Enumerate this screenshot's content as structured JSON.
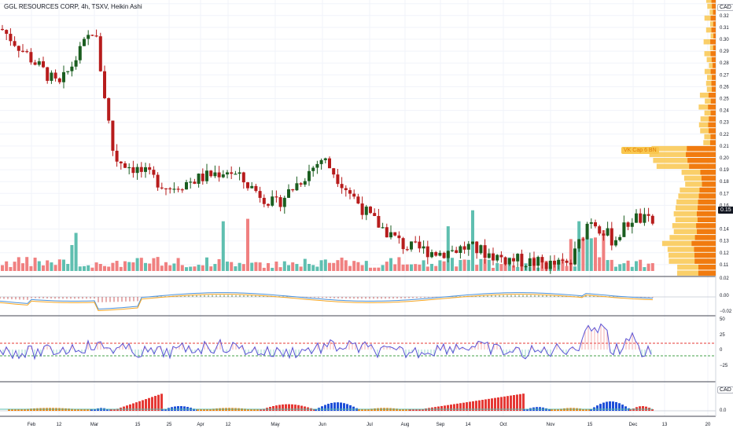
{
  "header": {
    "title": "GGL RESOURCES CORP, 4h, TSXV, Heikin Ashi"
  },
  "price_axis": {
    "currency": "CAD",
    "current_price": "0.15",
    "ticks": [
      "0.33",
      "0.32",
      "0.31",
      "0.30",
      "0.29",
      "0.28",
      "0.27",
      "0.26",
      "0.25",
      "0.24",
      "0.23",
      "0.22",
      "0.21",
      "0.20",
      "0.19",
      "0.18",
      "0.17",
      "0.16",
      "0.14",
      "0.13",
      "0.12",
      "0.11",
      "0.10"
    ]
  },
  "volume_profile_label": "VK Cap 6 BN",
  "macd_axis": {
    "ticks": [
      "0.02",
      "0.00",
      "−0.02"
    ]
  },
  "osc_axis": {
    "ticks": [
      "50",
      "25",
      "0",
      "−25"
    ]
  },
  "bottom_axis": {
    "currency": "CAD",
    "ticks": [
      "0.0"
    ]
  },
  "time_axis": {
    "labels": [
      "Feb",
      "12",
      "Mar",
      "15",
      "25",
      "Apr",
      "12",
      "May",
      "Jun",
      "Jul",
      "Aug",
      "Sep",
      "14",
      "Oct",
      "Nov",
      "15",
      "Dec",
      "13",
      "20"
    ]
  },
  "colors": {
    "up": "#1b5e20",
    "down": "#b71c1c",
    "vol_up": "#5fbfb0",
    "vol_down": "#f08080",
    "macd": "#4a90d9",
    "signal": "#f5a623",
    "osc": "#5c55d6",
    "band_upper": "#e53935",
    "band_lower": "#43a047",
    "vp_yellow": "#f9c74f",
    "vp_orange": "#ef6c00",
    "bar_red": "#e53935",
    "bar_blue": "#1e4fd8",
    "bar_orange": "#f57c00"
  },
  "chart_data": [
    {
      "type": "candlestick",
      "title": "GGL RESOURCES CORP, 4h, TSXV, Heikin Ashi",
      "ylim": [
        0.1,
        0.34
      ],
      "x_labels": [
        "Feb",
        "12",
        "Mar",
        "15",
        "25",
        "Apr",
        "12",
        "May",
        "Jun",
        "Jul",
        "Aug",
        "Sep",
        "14",
        "Oct",
        "Nov",
        "15",
        "Dec",
        "13",
        "20"
      ],
      "close_path": [
        {
          "x": "Feb",
          "y": 0.3
        },
        {
          "x": "12",
          "y": 0.26
        },
        {
          "x": "Mar",
          "y": 0.31
        },
        {
          "x": "15",
          "y": 0.19
        },
        {
          "x": "25",
          "y": 0.185
        },
        {
          "x": "Apr",
          "y": 0.175
        },
        {
          "x": "12",
          "y": 0.19
        },
        {
          "x": "May",
          "y": 0.16
        },
        {
          "x": "Jun",
          "y": 0.195
        },
        {
          "x": "Jul",
          "y": 0.15
        },
        {
          "x": "Aug",
          "y": 0.125
        },
        {
          "x": "Sep",
          "y": 0.12
        },
        {
          "x": "14",
          "y": 0.125
        },
        {
          "x": "Oct",
          "y": 0.115
        },
        {
          "x": "Nov",
          "y": 0.11
        },
        {
          "x": "15",
          "y": 0.15
        },
        {
          "x": "Dec",
          "y": 0.15
        }
      ],
      "last_price": 0.15
    },
    {
      "type": "bar",
      "name": "Volume"
    },
    {
      "type": "line",
      "name": "MACD",
      "ylim": [
        -0.02,
        0.02
      ]
    },
    {
      "type": "line",
      "name": "Oscillator",
      "ylim": [
        -25,
        50
      ],
      "bands": [
        15,
        -15
      ]
    },
    {
      "type": "bar",
      "name": "Histogram",
      "currency": "CAD"
    }
  ]
}
